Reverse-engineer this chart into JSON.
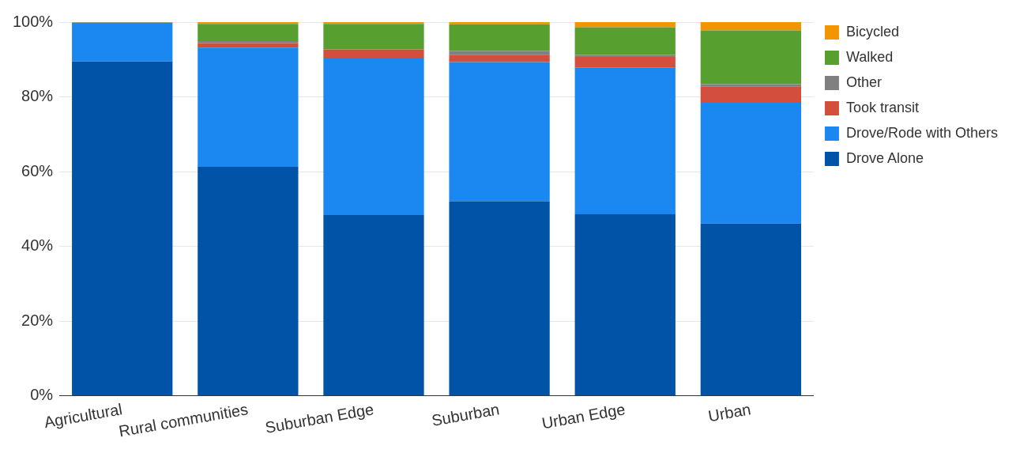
{
  "chart_data": {
    "type": "bar",
    "stacked": true,
    "categories": [
      "Agricultural",
      "Rural communities",
      "Suburban Edge",
      "Suburban",
      "Urban Edge",
      "Urban"
    ],
    "series": [
      {
        "name": "Drove Alone",
        "color": "#0053a6",
        "values": [
          89.5,
          61.3,
          48.4,
          52.1,
          48.6,
          46.1
        ]
      },
      {
        "name": "Drove/Rode with Others",
        "color": "#1a88f0",
        "values": [
          10.3,
          31.9,
          42.1,
          37.2,
          39.2,
          32.3
        ]
      },
      {
        "name": "Took transit",
        "color": "#d44e3d",
        "values": [
          0,
          1.2,
          2.2,
          2.0,
          2.9,
          4.4
        ]
      },
      {
        "name": "Other",
        "color": "#808080",
        "values": [
          0.1,
          0.5,
          0,
          1.0,
          0.5,
          0.6
        ]
      },
      {
        "name": "Walked",
        "color": "#57a02f",
        "values": [
          0.1,
          4.6,
          6.8,
          7.1,
          7.4,
          14.4
        ]
      },
      {
        "name": "Bicycled",
        "color": "#f29500",
        "values": [
          0,
          0.5,
          0.5,
          0.6,
          1.4,
          2.2
        ]
      }
    ],
    "ylim": [
      0,
      100
    ],
    "yticks": [
      {
        "value": 0,
        "label": "0%"
      },
      {
        "value": 20,
        "label": "20%"
      },
      {
        "value": 40,
        "label": "40%"
      },
      {
        "value": 60,
        "label": "60%"
      },
      {
        "value": 80,
        "label": "80%"
      },
      {
        "value": 100,
        "label": "100%"
      }
    ],
    "grid": "y",
    "legend": "top right"
  }
}
